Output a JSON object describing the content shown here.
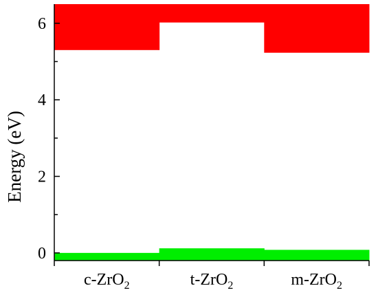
{
  "chart_data": {
    "type": "band-diagram",
    "ylabel": "Energy (eV)",
    "ylim": [
      -0.2,
      6.5
    ],
    "yticks": [
      "0",
      "2",
      "4",
      "6"
    ],
    "categories": [
      {
        "prefix": "c-ZrO",
        "sub": "2",
        "vb_top": 0.0,
        "cb_bottom": 5.3
      },
      {
        "prefix": "t-ZrO",
        "sub": "2",
        "vb_top": 0.12,
        "cb_bottom": 6.02
      },
      {
        "prefix": "m-ZrO",
        "sub": "2",
        "vb_top": 0.08,
        "cb_bottom": 5.23
      }
    ],
    "colors": {
      "conduction_band": "#ff0000",
      "valence_band": "#00ee00",
      "axis": "#000000"
    }
  }
}
